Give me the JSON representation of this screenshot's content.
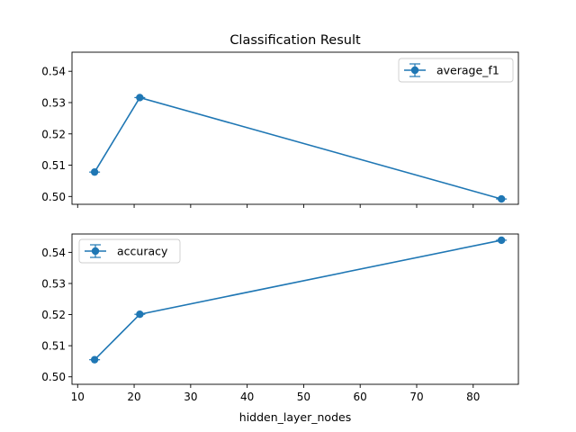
{
  "chart_data": {
    "type": "line",
    "title": "Classification Result",
    "xlabel": "hidden_layer_nodes",
    "line_color": "#1f77b4",
    "xlim": [
      9,
      88
    ],
    "xticks": [
      10,
      20,
      30,
      40,
      50,
      60,
      70,
      80
    ],
    "subplots": [
      {
        "series_name": "average_f1",
        "legend_position": "upper-right",
        "x": [
          13,
          21,
          85
        ],
        "y": [
          0.5078,
          0.5316,
          0.4992
        ],
        "ylim": [
          0.4975,
          0.5461
        ],
        "yticks": [
          0.5,
          0.51,
          0.52,
          0.53,
          0.54
        ],
        "ytick_labels": [
          "0.50",
          "0.51",
          "0.52",
          "0.53",
          "0.54"
        ],
        "show_xtick_labels": false
      },
      {
        "series_name": "accuracy",
        "legend_position": "upper-left",
        "x": [
          13,
          21,
          85
        ],
        "y": [
          0.5055,
          0.5201,
          0.5439
        ],
        "ylim": [
          0.4976,
          0.5459
        ],
        "yticks": [
          0.5,
          0.51,
          0.52,
          0.53,
          0.54
        ],
        "ytick_labels": [
          "0.50",
          "0.51",
          "0.52",
          "0.53",
          "0.54"
        ],
        "show_xtick_labels": true
      }
    ]
  }
}
